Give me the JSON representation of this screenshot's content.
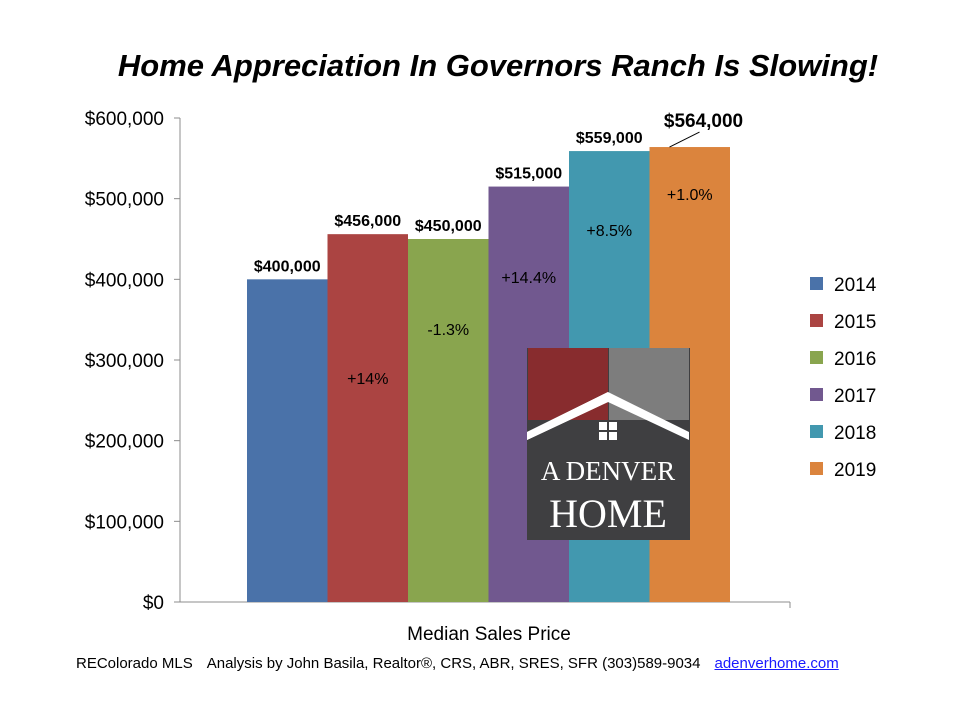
{
  "title": "Home Appreciation In Governors Ranch Is Slowing!",
  "footer": {
    "source": "REColorado MLS",
    "analysis": "Analysis by John Basila, Realtor®, CRS, ABR, SRES, SFR (303)589-9034",
    "link": "adenverhome.com"
  },
  "logo": {
    "line1": "A DENVER",
    "line2": "HOME"
  },
  "chart_data": {
    "type": "bar",
    "title": "Home Appreciation In Governors Ranch Is Slowing!",
    "xlabel": "Median Sales Price",
    "ylabel": "",
    "categories": [
      "Median Sales Price"
    ],
    "ylim": [
      0,
      600000
    ],
    "yticks": [
      0,
      100000,
      200000,
      300000,
      400000,
      500000,
      600000
    ],
    "ytick_labels": [
      "$0",
      "$100,000",
      "$200,000",
      "$300,000",
      "$400,000",
      "$500,000",
      "$600,000"
    ],
    "grid": false,
    "legend_position": "right",
    "series": [
      {
        "name": "2014",
        "values": [
          400000
        ],
        "label": "$400,000",
        "change": "",
        "color": "#4a72a9"
      },
      {
        "name": "2015",
        "values": [
          456000
        ],
        "label": "$456,000",
        "change": "+14%",
        "color": "#ab4442"
      },
      {
        "name": "2016",
        "values": [
          450000
        ],
        "label": "$450,000",
        "change": "-1.3%",
        "color": "#89a54e"
      },
      {
        "name": "2017",
        "values": [
          515000
        ],
        "label": "$515,000",
        "change": "+14.4%",
        "color": "#71588f"
      },
      {
        "name": "2018",
        "values": [
          559000
        ],
        "label": "$559,000",
        "change": "+8.5%",
        "color": "#4298af"
      },
      {
        "name": "2019",
        "values": [
          564000
        ],
        "label": "$564,000",
        "change": "+1.0%",
        "color": "#db843d"
      }
    ]
  }
}
